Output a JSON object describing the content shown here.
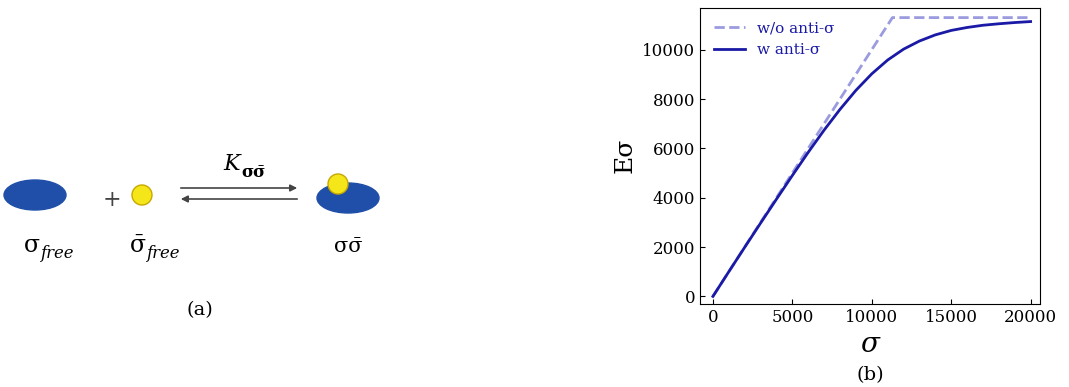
{
  "diagram": {
    "reactants": [
      {
        "symbol": "σ",
        "subscript": "free"
      },
      {
        "symbol": "σ̄",
        "subscript": "free"
      }
    ],
    "operator": "+",
    "constant": {
      "symbol": "K",
      "subscript": "σσ̄"
    },
    "product": {
      "symbol": "σσ̄"
    },
    "panel_label": "(a)"
  },
  "chart_data": {
    "type": "line",
    "panel_label": "(b)",
    "x_label": "σ",
    "y_label": "Eσ",
    "xlim": [
      -800,
      20600
    ],
    "xticks": [
      0,
      5000,
      10000,
      15000,
      20000
    ],
    "ylim": [
      -300,
      11700
    ],
    "yticks": [
      0,
      2000,
      4000,
      6000,
      8000,
      10000
    ],
    "legend": "upper left",
    "series": [
      {
        "name": "w/o anti-σ",
        "color": "#9b9be0",
        "line_style": "dashed",
        "x": [
          0,
          11300,
          20000
        ],
        "values": [
          0,
          11300,
          11300
        ]
      },
      {
        "name": "w anti-σ",
        "color": "#1a1aa6",
        "line_style": "solid",
        "x": [
          0,
          1000,
          2000,
          3000,
          4000,
          5000,
          6000,
          7000,
          8000,
          9000,
          10000,
          11000,
          12000,
          13000,
          14000,
          15000,
          16000,
          17000,
          18000,
          19000,
          20000
        ],
        "values": [
          0,
          1000,
          1990,
          2970,
          3940,
          4900,
          5840,
          6740,
          7580,
          8350,
          9020,
          9580,
          10020,
          10350,
          10600,
          10780,
          10900,
          10990,
          11050,
          11100,
          11140
        ]
      }
    ]
  }
}
